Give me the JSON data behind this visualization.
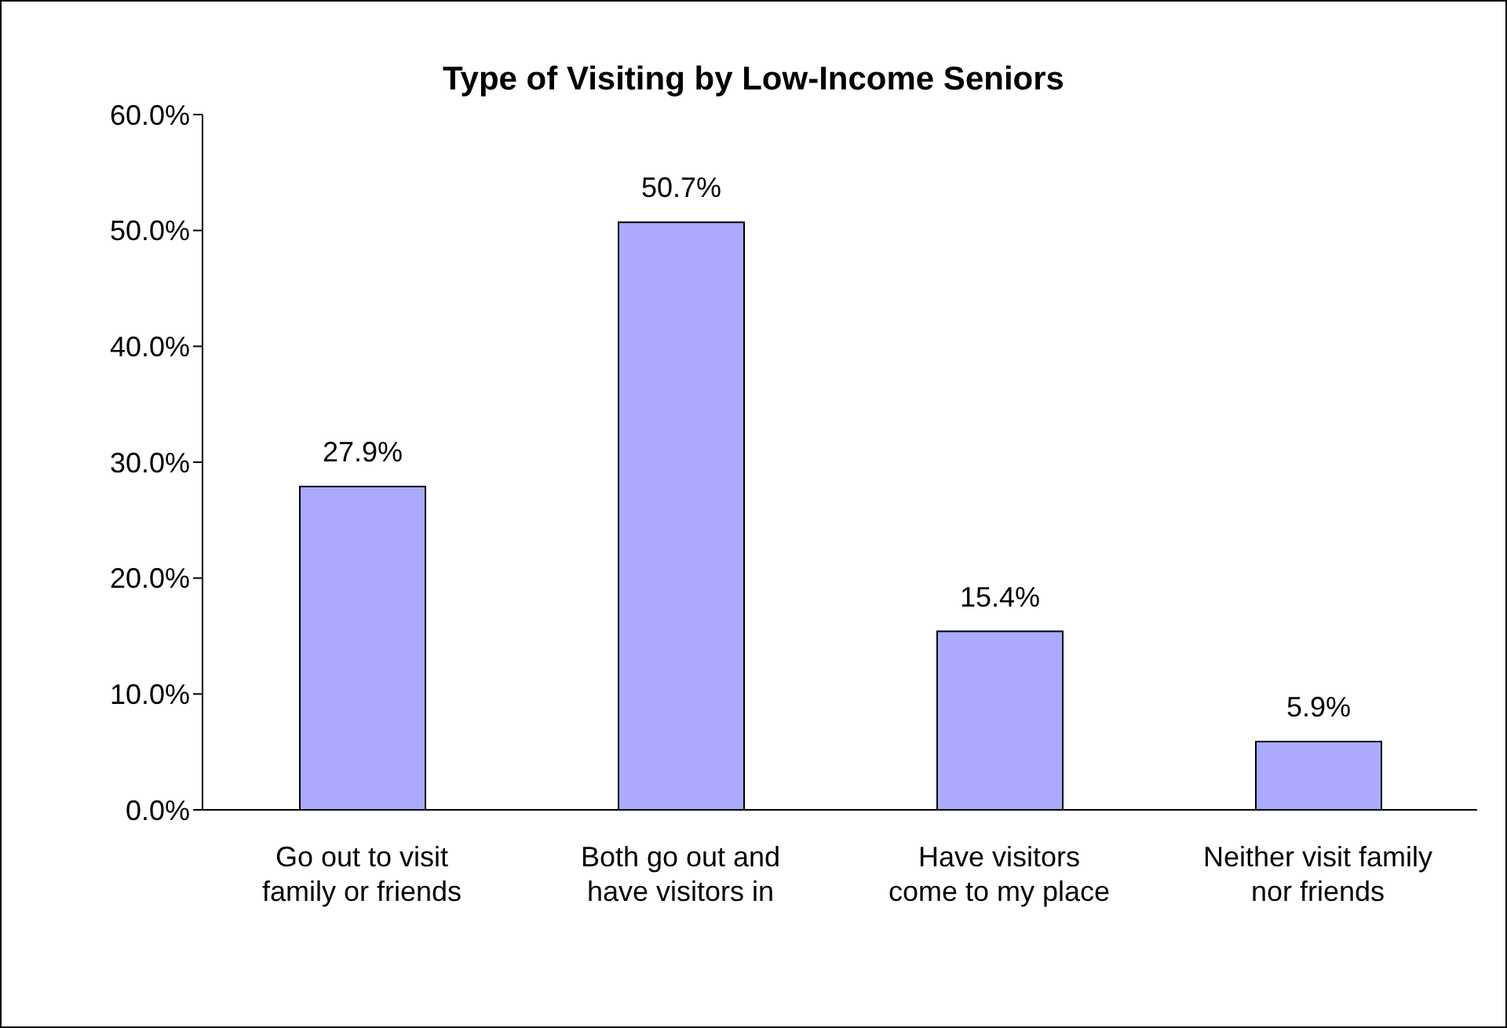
{
  "chart_data": {
    "type": "bar",
    "title": "Type of Visiting by Low-Income Seniors",
    "categories": [
      "Go out to visit family or friends",
      "Both go out and have visitors in",
      "Have visitors come to my place",
      "Neither visit family nor friends"
    ],
    "values": [
      27.9,
      50.7,
      15.4,
      5.9
    ],
    "value_labels": [
      "27.9%",
      "50.7%",
      "15.4%",
      "5.9%"
    ],
    "color": "#aaaaff",
    "ylim": [
      0,
      60
    ],
    "yticks": [
      {
        "value": 0,
        "label": "0.0%"
      },
      {
        "value": 10,
        "label": "10.0%"
      },
      {
        "value": 20,
        "label": "20.0%"
      },
      {
        "value": 30,
        "label": "30.0%"
      },
      {
        "value": 40,
        "label": "40.0%"
      },
      {
        "value": 50,
        "label": "50.0%"
      },
      {
        "value": 60,
        "label": "60.0%"
      }
    ],
    "grid": false,
    "legend": false
  }
}
